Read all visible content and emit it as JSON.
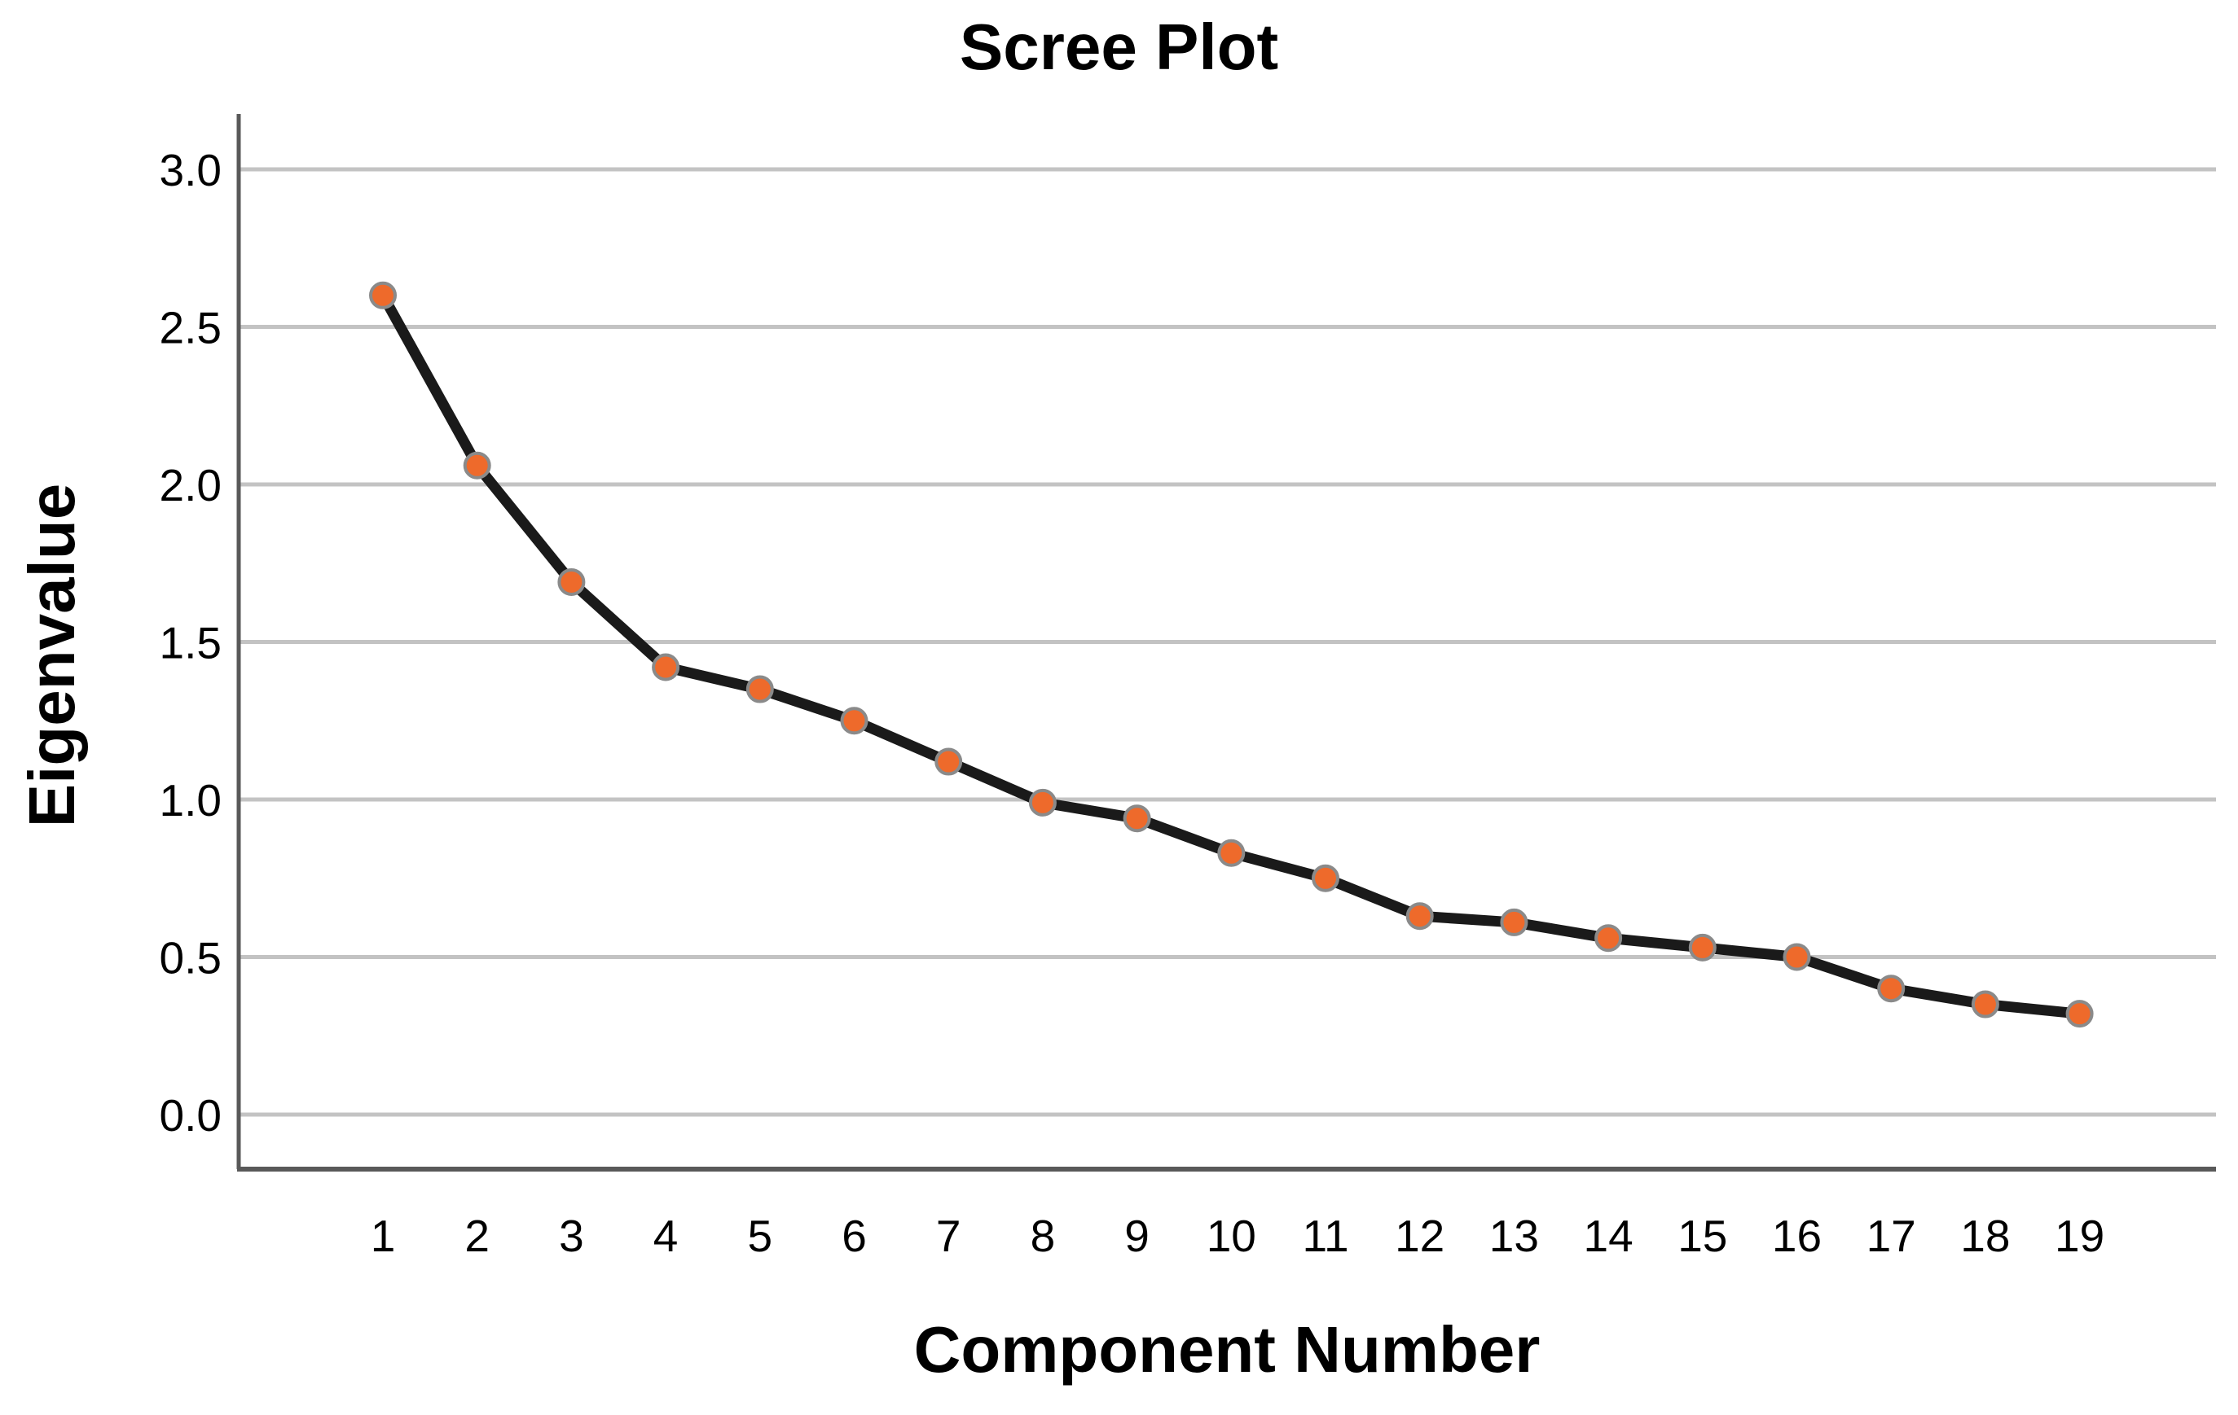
{
  "chart_data": {
    "type": "line",
    "title": "Scree Plot",
    "xlabel": "Component Number",
    "ylabel": "Eigenvalue",
    "series_name": "Eigenvalue",
    "x": [
      1,
      2,
      3,
      4,
      5,
      6,
      7,
      8,
      9,
      10,
      11,
      12,
      13,
      14,
      15,
      16,
      17,
      18,
      19
    ],
    "values": [
      2.6,
      2.06,
      1.69,
      1.42,
      1.35,
      1.25,
      1.12,
      0.99,
      0.94,
      0.83,
      0.75,
      0.63,
      0.61,
      0.56,
      0.53,
      0.5,
      0.4,
      0.35,
      0.32
    ],
    "ylim": [
      0.0,
      3.2
    ],
    "ytick_values": [
      3.0,
      2.5,
      2.0,
      1.5,
      1.0,
      0.5,
      0.0
    ],
    "ytick_labels": [
      "3.0",
      "2.5",
      "2.0",
      "1.5",
      "1.0",
      "0.5",
      "0.0"
    ],
    "grid": "horizontal",
    "legend": "none",
    "marker": "circle",
    "colors": {
      "marker_fill": "#EE6A2B",
      "marker_stroke": "#8A8A8A",
      "line": "#1A1A1A",
      "grid": "#C3C3C3",
      "axis": "#595959",
      "text": "#000000",
      "background": "#FFFFFF"
    }
  }
}
